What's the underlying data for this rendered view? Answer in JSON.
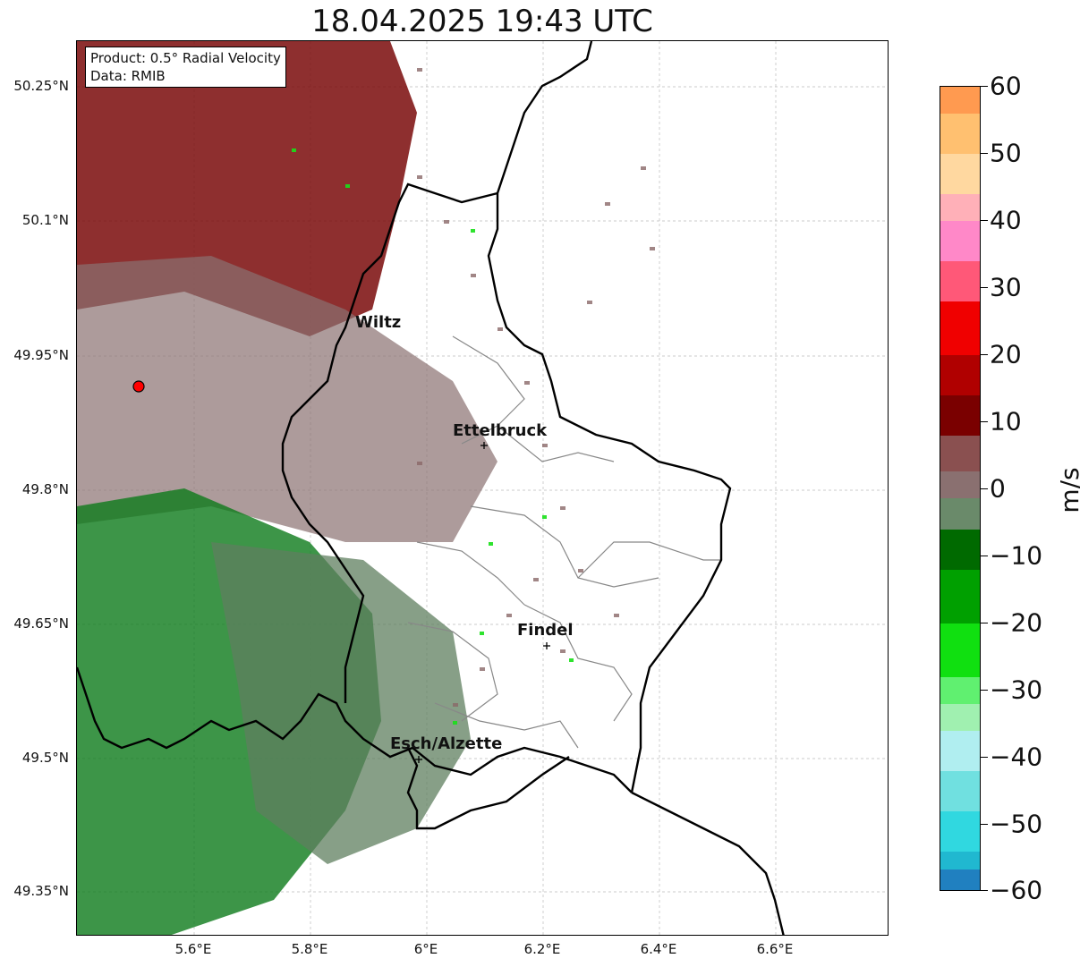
{
  "title": "18.04.2025 19:43 UTC",
  "infobox": {
    "product_line": "Product: 0.5° Radial Velocity",
    "data_line": "Data: RMIB"
  },
  "lat_labels": [
    "50.25°N",
    "50.1°N",
    "49.95°N",
    "49.8°N",
    "49.65°N",
    "49.5°N",
    "49.35°N"
  ],
  "lon_labels": [
    "5.6°E",
    "5.8°E",
    "6°E",
    "6.2°E",
    "6.4°E",
    "6.6°E"
  ],
  "cities": [
    {
      "name": "Wiltz"
    },
    {
      "name": "Ettelbruck"
    },
    {
      "name": "Findel"
    },
    {
      "name": "Esch/Alzette"
    }
  ],
  "colorbar": {
    "unit": "m/s",
    "ticks": [
      "60",
      "50",
      "40",
      "30",
      "20",
      "10",
      "0",
      "−10",
      "−20",
      "−30",
      "−40",
      "−50",
      "−60"
    ],
    "min": -60,
    "max": 60
  },
  "colors": {
    "border": "#000000",
    "canton_lines": "#888888",
    "radar_site": "#ff0000"
  }
}
